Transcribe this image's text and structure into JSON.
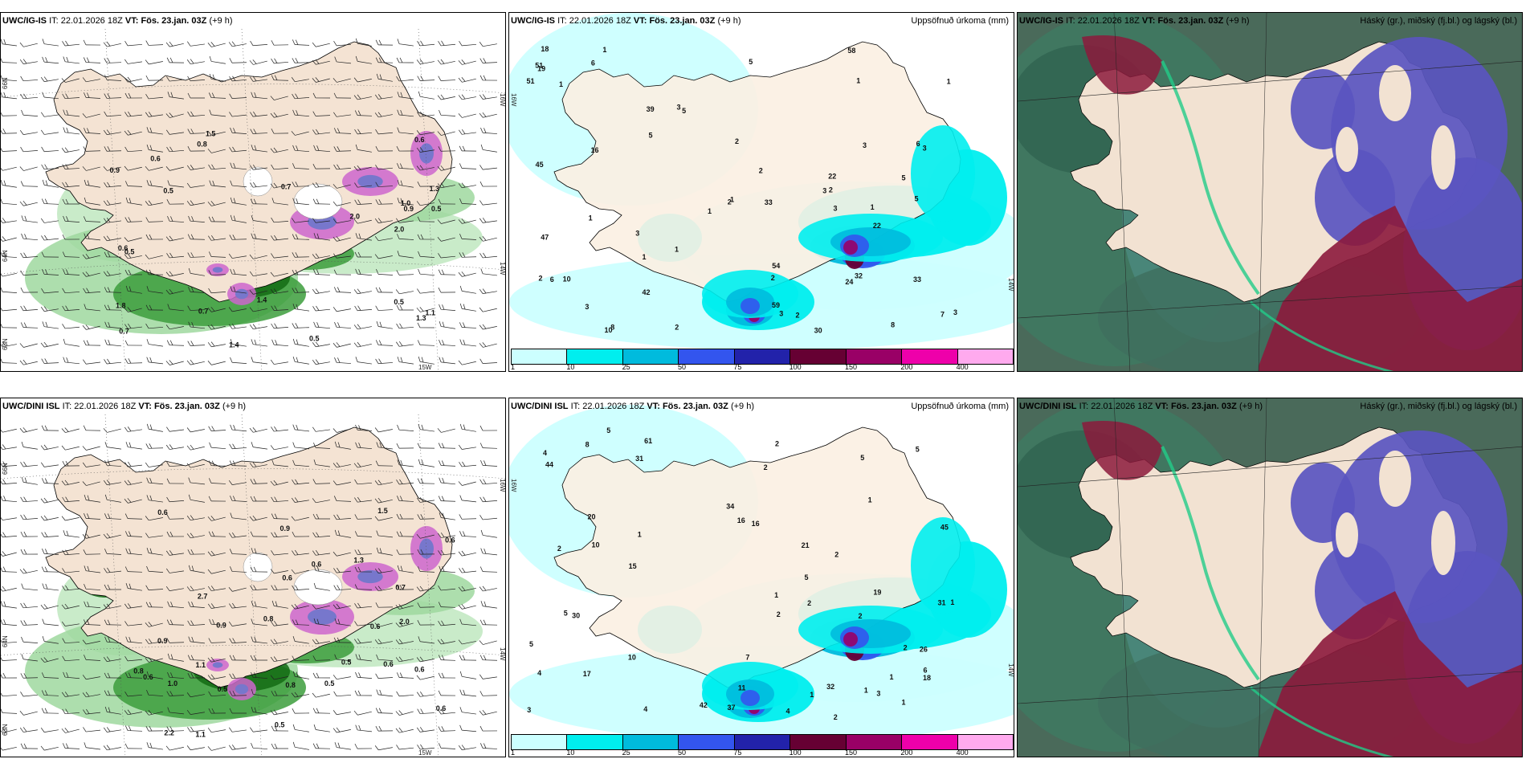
{
  "rows": [
    {
      "model": "UWC/IG-IS",
      "it_label": "IT:",
      "it_value": "22.01.2026 18Z",
      "vt_label": "VT:",
      "vt_value": "Fös. 23.jan. 03Z",
      "lead": "(+9 h)",
      "lat_labels": [
        "66N",
        "64N",
        "63N"
      ],
      "lon_labels": [
        "15W"
      ],
      "right_lon": [
        "16W",
        "14W"
      ],
      "precip_panel_labels": [
        "5",
        "2",
        "1",
        "3",
        "1",
        "2",
        "1",
        "3",
        "16",
        "2",
        "1",
        "1",
        "24",
        "19",
        "22",
        "10",
        "3",
        "3",
        "10",
        "1",
        "6",
        "22",
        "33",
        "58",
        "54",
        "51",
        "42",
        "1",
        "2",
        "3",
        "3",
        "3",
        "2",
        "5",
        "6",
        "8",
        "5",
        "32",
        "47",
        "30",
        "39",
        "59",
        "51",
        "45",
        "18",
        "33",
        "1",
        "6",
        "2",
        "2",
        "3",
        "1",
        "7",
        "8",
        "5",
        "5",
        "2",
        "1",
        "3"
      ],
      "wind_panel_labels": [
        "0.5",
        "1.3",
        "1.1",
        "0.7",
        "0.7",
        "1.5",
        "1.0",
        "0.7",
        "0.6",
        "0.5",
        "0.5",
        "0.9",
        "2.0",
        "1.4",
        "1.8",
        "0.6",
        "1.3",
        "0.8",
        "1.4",
        "0.9",
        "0.6",
        "0.5",
        "0.5",
        "2.0"
      ]
    },
    {
      "model": "UWC/DINI ISL",
      "it_label": "IT:",
      "it_value": "22.01.2026 18Z",
      "vt_label": "VT:",
      "vt_value": "Fös. 23.jan. 03Z",
      "lead": "(+9 h)",
      "lat_labels": [
        "66N",
        "64N",
        "63N"
      ],
      "lon_labels": [
        "15W"
      ],
      "right_lon": [
        "16W",
        "14W"
      ],
      "precip_panel_labels": [
        "3",
        "4",
        "1",
        "4",
        "2",
        "1",
        "1",
        "2",
        "1",
        "2",
        "1",
        "1",
        "5",
        "10",
        "11",
        "16",
        "1",
        "2",
        "31",
        "7",
        "6",
        "2",
        "20",
        "10",
        "30",
        "15",
        "17",
        "5",
        "5",
        "45",
        "61",
        "44",
        "31",
        "32",
        "34",
        "37",
        "42",
        "21",
        "26",
        "19",
        "18",
        "16",
        "8",
        "4",
        "2",
        "2",
        "4",
        "5",
        "5",
        "5",
        "3",
        "2",
        "2",
        "1"
      ],
      "wind_panel_labels": [
        "1.1",
        "0.5",
        "0.9",
        "0.5",
        "0.6",
        "1.3",
        "0.9",
        "0.6",
        "0.6",
        "0.8",
        "2.7",
        "0.6",
        "0.8",
        "0.6",
        "0.6",
        "0.6",
        "2.0",
        "2.2",
        "0.7",
        "1.5",
        "1.0",
        "0.9",
        "1.1",
        "0.8",
        "0.6",
        "0.5",
        "0.6",
        "0.5"
      ]
    }
  ],
  "precip_title": "Uppsöfnuð úrkoma (mm)",
  "cloud_title": "Háský (gr.), miðský (fj.bl.) og lágský (bl.)",
  "legend": {
    "ticks": [
      "1",
      "10",
      "25",
      "50",
      "75",
      "100",
      "150",
      "200",
      "400"
    ],
    "colors": [
      "#ccffff",
      "#00eeee",
      "#00bbdd",
      "#3355ee",
      "#2222aa",
      "#660033",
      "#990066",
      "#ee00aa",
      "#ffaaee"
    ]
  }
}
